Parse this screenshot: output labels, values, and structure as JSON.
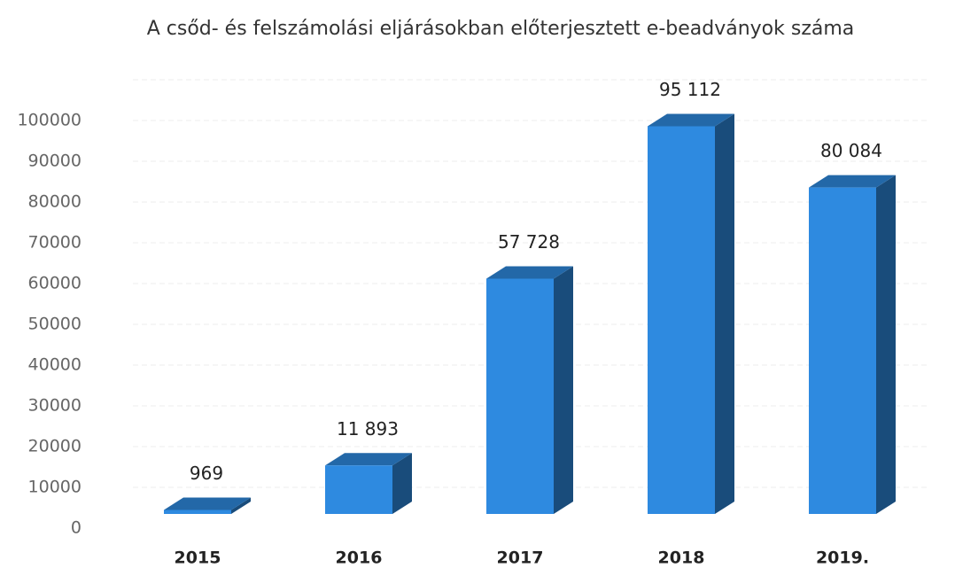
{
  "chart_data": {
    "type": "bar3d",
    "title": "A csőd- és felszámolási eljárásokban előterjesztett e-beadványok száma",
    "categories": [
      "2015",
      "2016",
      "2017",
      "2018",
      "2019."
    ],
    "values": [
      969,
      11893,
      57728,
      95112,
      80084
    ],
    "value_labels": [
      "969",
      "11 893",
      "57 728",
      "95 112",
      "80 084"
    ],
    "color": "#2e8ae0",
    "ylim": [
      0,
      100000
    ],
    "yticks": [
      0,
      10000,
      20000,
      30000,
      40000,
      50000,
      60000,
      70000,
      80000,
      90000,
      100000
    ],
    "grid": true
  }
}
